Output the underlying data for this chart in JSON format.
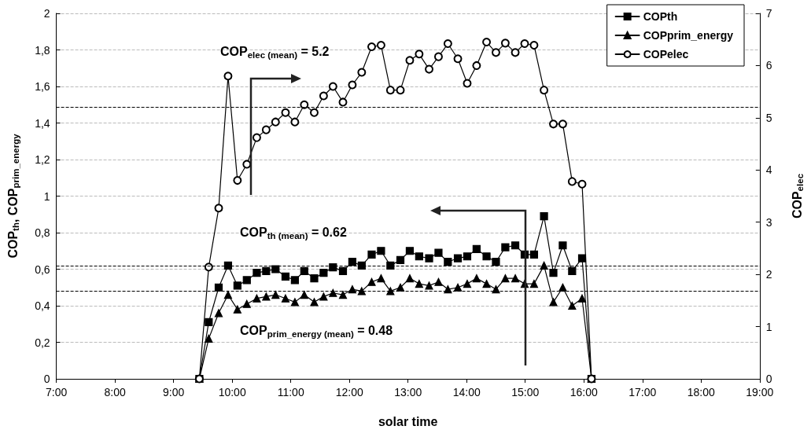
{
  "chart_data": {
    "type": "line",
    "xlabel": "solar time",
    "ylabel": "COP$_{th}$, COP$_{prim_energy}$",
    "y2label": "COP$_{elec}$",
    "x": [
      9.44,
      9.6,
      9.77,
      9.93,
      10.09,
      10.25,
      10.42,
      10.58,
      10.74,
      10.91,
      11.07,
      11.23,
      11.4,
      11.56,
      11.72,
      11.89,
      12.05,
      12.21,
      12.38,
      12.54,
      12.7,
      12.87,
      13.03,
      13.19,
      13.36,
      13.52,
      13.68,
      13.85,
      14.01,
      14.17,
      14.34,
      14.5,
      14.66,
      14.83,
      14.99,
      15.15,
      15.32,
      15.48,
      15.64,
      15.8,
      15.97,
      16.13
    ],
    "series": [
      {
        "name": "COPth",
        "color": "#000000",
        "marker": "square",
        "values": [
          0,
          0.31,
          0.5,
          0.62,
          0.51,
          0.54,
          0.58,
          0.59,
          0.6,
          0.56,
          0.54,
          0.59,
          0.55,
          0.58,
          0.61,
          0.59,
          0.64,
          0.62,
          0.68,
          0.7,
          0.62,
          0.65,
          0.7,
          0.67,
          0.66,
          0.69,
          0.64,
          0.66,
          0.67,
          0.71,
          0.67,
          0.64,
          0.72,
          0.73,
          0.68,
          0.68,
          0.89,
          0.58,
          0.73,
          0.59,
          0.66,
          0
        ]
      },
      {
        "name": "COPprim_energy",
        "color": "#000000",
        "marker": "triangle",
        "values": [
          0,
          0.22,
          0.36,
          0.46,
          0.38,
          0.41,
          0.44,
          0.45,
          0.46,
          0.44,
          0.42,
          0.46,
          0.42,
          0.45,
          0.47,
          0.46,
          0.49,
          0.48,
          0.53,
          0.55,
          0.48,
          0.5,
          0.55,
          0.52,
          0.51,
          0.53,
          0.49,
          0.5,
          0.52,
          0.55,
          0.52,
          0.49,
          0.55,
          0.55,
          0.52,
          0.52,
          0.62,
          0.42,
          0.5,
          0.4,
          0.44,
          0
        ]
      },
      {
        "name": "COPelec",
        "color": "#000000",
        "marker": "circle",
        "axis": "y2",
        "values": [
          0,
          2.14,
          3.27,
          5.8,
          3.8,
          4.11,
          4.62,
          4.77,
          4.92,
          5.1,
          4.92,
          5.25,
          5.1,
          5.42,
          5.6,
          5.3,
          5.63,
          5.87,
          6.36,
          6.39,
          5.53,
          5.53,
          6.1,
          6.22,
          5.93,
          6.17,
          6.42,
          6.13,
          5.66,
          6.0,
          6.45,
          6.25,
          6.43,
          6.25,
          6.42,
          6.39,
          5.53,
          4.88,
          4.88,
          3.78,
          3.73,
          0
        ]
      }
    ],
    "xlim": [
      7,
      19
    ],
    "xticks": [
      {
        "value": 7,
        "label": "7:00"
      },
      {
        "value": 8,
        "label": "8:00"
      },
      {
        "value": 9,
        "label": "9:00"
      },
      {
        "value": 10,
        "label": "10:00"
      },
      {
        "value": 11,
        "label": "11:00"
      },
      {
        "value": 12,
        "label": "12:00"
      },
      {
        "value": 13,
        "label": "13:00"
      },
      {
        "value": 14,
        "label": "14:00"
      },
      {
        "value": 15,
        "label": "15:00"
      },
      {
        "value": 16,
        "label": "16:00"
      },
      {
        "value": 17,
        "label": "17:00"
      },
      {
        "value": 18,
        "label": "18:00"
      },
      {
        "value": 19,
        "label": "19:00"
      }
    ],
    "ylim": [
      0,
      2
    ],
    "yticks": [
      0,
      {
        "value": 0.2,
        "label": "0,2"
      },
      {
        "value": 0.4,
        "label": "0,4"
      },
      {
        "value": 0.6,
        "label": "0,6"
      },
      {
        "value": 0.8,
        "label": "0,8"
      },
      1,
      {
        "value": 1.2,
        "label": "1,2"
      },
      {
        "value": 1.4,
        "label": "1,4"
      },
      {
        "value": 1.6,
        "label": "1,6"
      },
      {
        "value": 1.8,
        "label": "1,8"
      },
      2
    ],
    "y2lim": [
      0,
      7
    ],
    "y2ticks": [
      0,
      1,
      2,
      3,
      4,
      5,
      6,
      7
    ],
    "ref_lines": [
      {
        "axis": "y2",
        "value": 5.2,
        "color": "#000000",
        "line_style": "dashed"
      },
      {
        "axis": "y",
        "value": 0.62,
        "color": "#000000",
        "line_style": "dashed"
      },
      {
        "axis": "y",
        "value": 0.48,
        "color": "#000000",
        "line_style": "dashed"
      }
    ],
    "annotations": [
      "COP$_{elec (mean)}$ = 5.2",
      "COP$_{th (mean)}$ = 0.62",
      "COP$_{prim_energy (mean)}$ = 0.48"
    ],
    "grid": "y",
    "legend": "top right",
    "line_style": "solid"
  }
}
